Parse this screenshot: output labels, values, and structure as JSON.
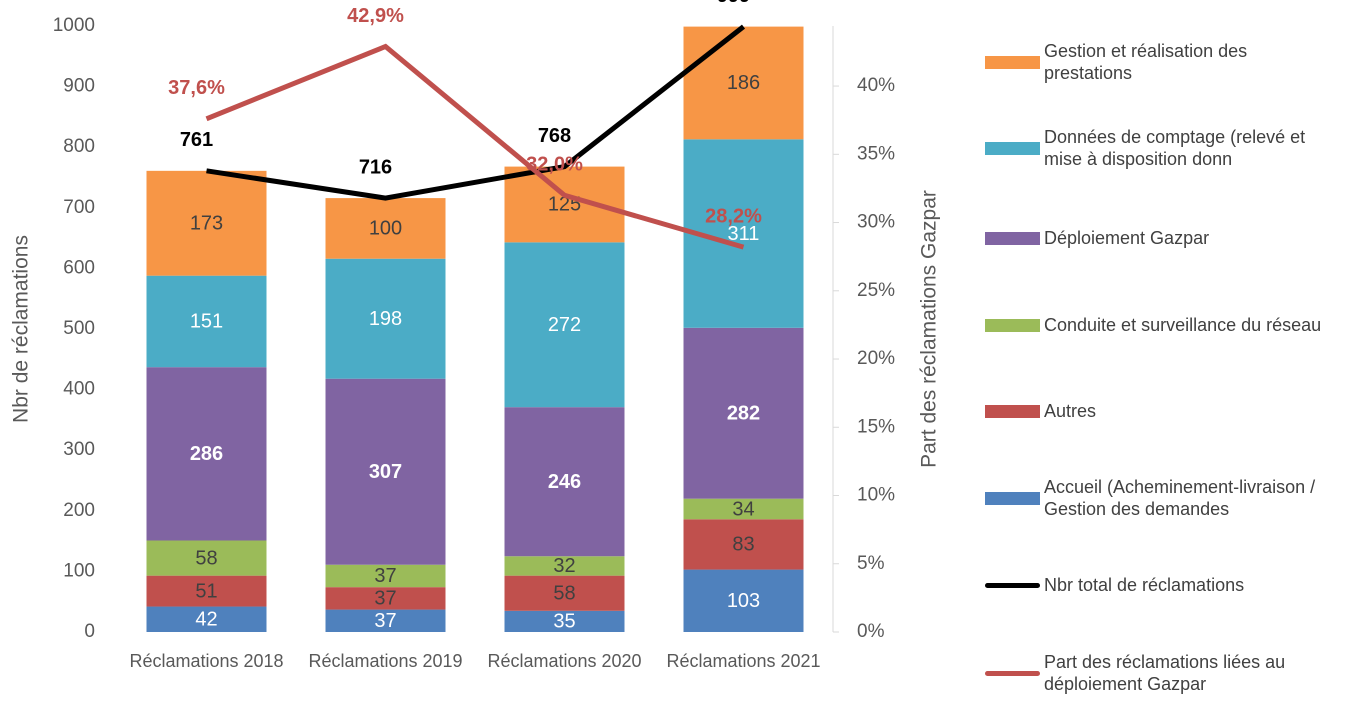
{
  "chart_data": {
    "type": "bar",
    "categories": [
      "Réclamations 2018",
      "Réclamations 2019",
      "Réclamations 2020",
      "Réclamations 2021"
    ],
    "ylabel": "Nbr de réclamations",
    "y2label": "Part des réclamations Gazpar",
    "ylim": [
      0,
      1000
    ],
    "yticks": [
      0,
      100,
      200,
      300,
      400,
      500,
      600,
      700,
      800,
      900,
      1000
    ],
    "y2lim": [
      0,
      44.4
    ],
    "y2ticks": [
      {
        "value": 0,
        "label": "0%"
      },
      {
        "value": 5,
        "label": "5%"
      },
      {
        "value": 10,
        "label": "10%"
      },
      {
        "value": 15,
        "label": "15%"
      },
      {
        "value": 20,
        "label": "20%"
      },
      {
        "value": 25,
        "label": "25%"
      },
      {
        "value": 30,
        "label": "30%"
      },
      {
        "value": 35,
        "label": "35%"
      },
      {
        "value": 40,
        "label": "40%"
      }
    ],
    "stacked": true,
    "series": [
      {
        "name": "Gestion et réalisation des prestations",
        "color": "#f79646",
        "values": [
          173,
          100,
          125,
          186
        ]
      },
      {
        "name": "Données de comptage (relevé et mise à disposition donn",
        "color": "#4bacc6",
        "values": [
          151,
          198,
          272,
          311
        ]
      },
      {
        "name": "Déploiement Gazpar",
        "color": "#8064a2",
        "values": [
          286,
          307,
          246,
          282
        ]
      },
      {
        "name": "Conduite et surveillance du réseau",
        "color": "#9bbb59",
        "values": [
          58,
          37,
          32,
          34
        ]
      },
      {
        "name": "Autres",
        "color": "#c0504d",
        "values": [
          51,
          37,
          58,
          83
        ]
      },
      {
        "name": "Accueil (Acheminement-livraison / Gestion des demandes",
        "color": "#4f81bd",
        "values": [
          42,
          37,
          35,
          103
        ]
      },
      {
        "name": "Nbr total de réclamations",
        "type": "line",
        "color": "#000000",
        "values": [
          761,
          716,
          768,
          999
        ]
      },
      {
        "name": "Part des réclamations liées au déploiement Gazpar",
        "type": "line",
        "axis": "y2",
        "color": "#c0504d",
        "values": [
          37.6,
          42.9,
          32.0,
          28.2
        ],
        "value_labels": [
          "37,6%",
          "42,9%",
          "32,0%",
          "28,2%"
        ]
      }
    ]
  }
}
